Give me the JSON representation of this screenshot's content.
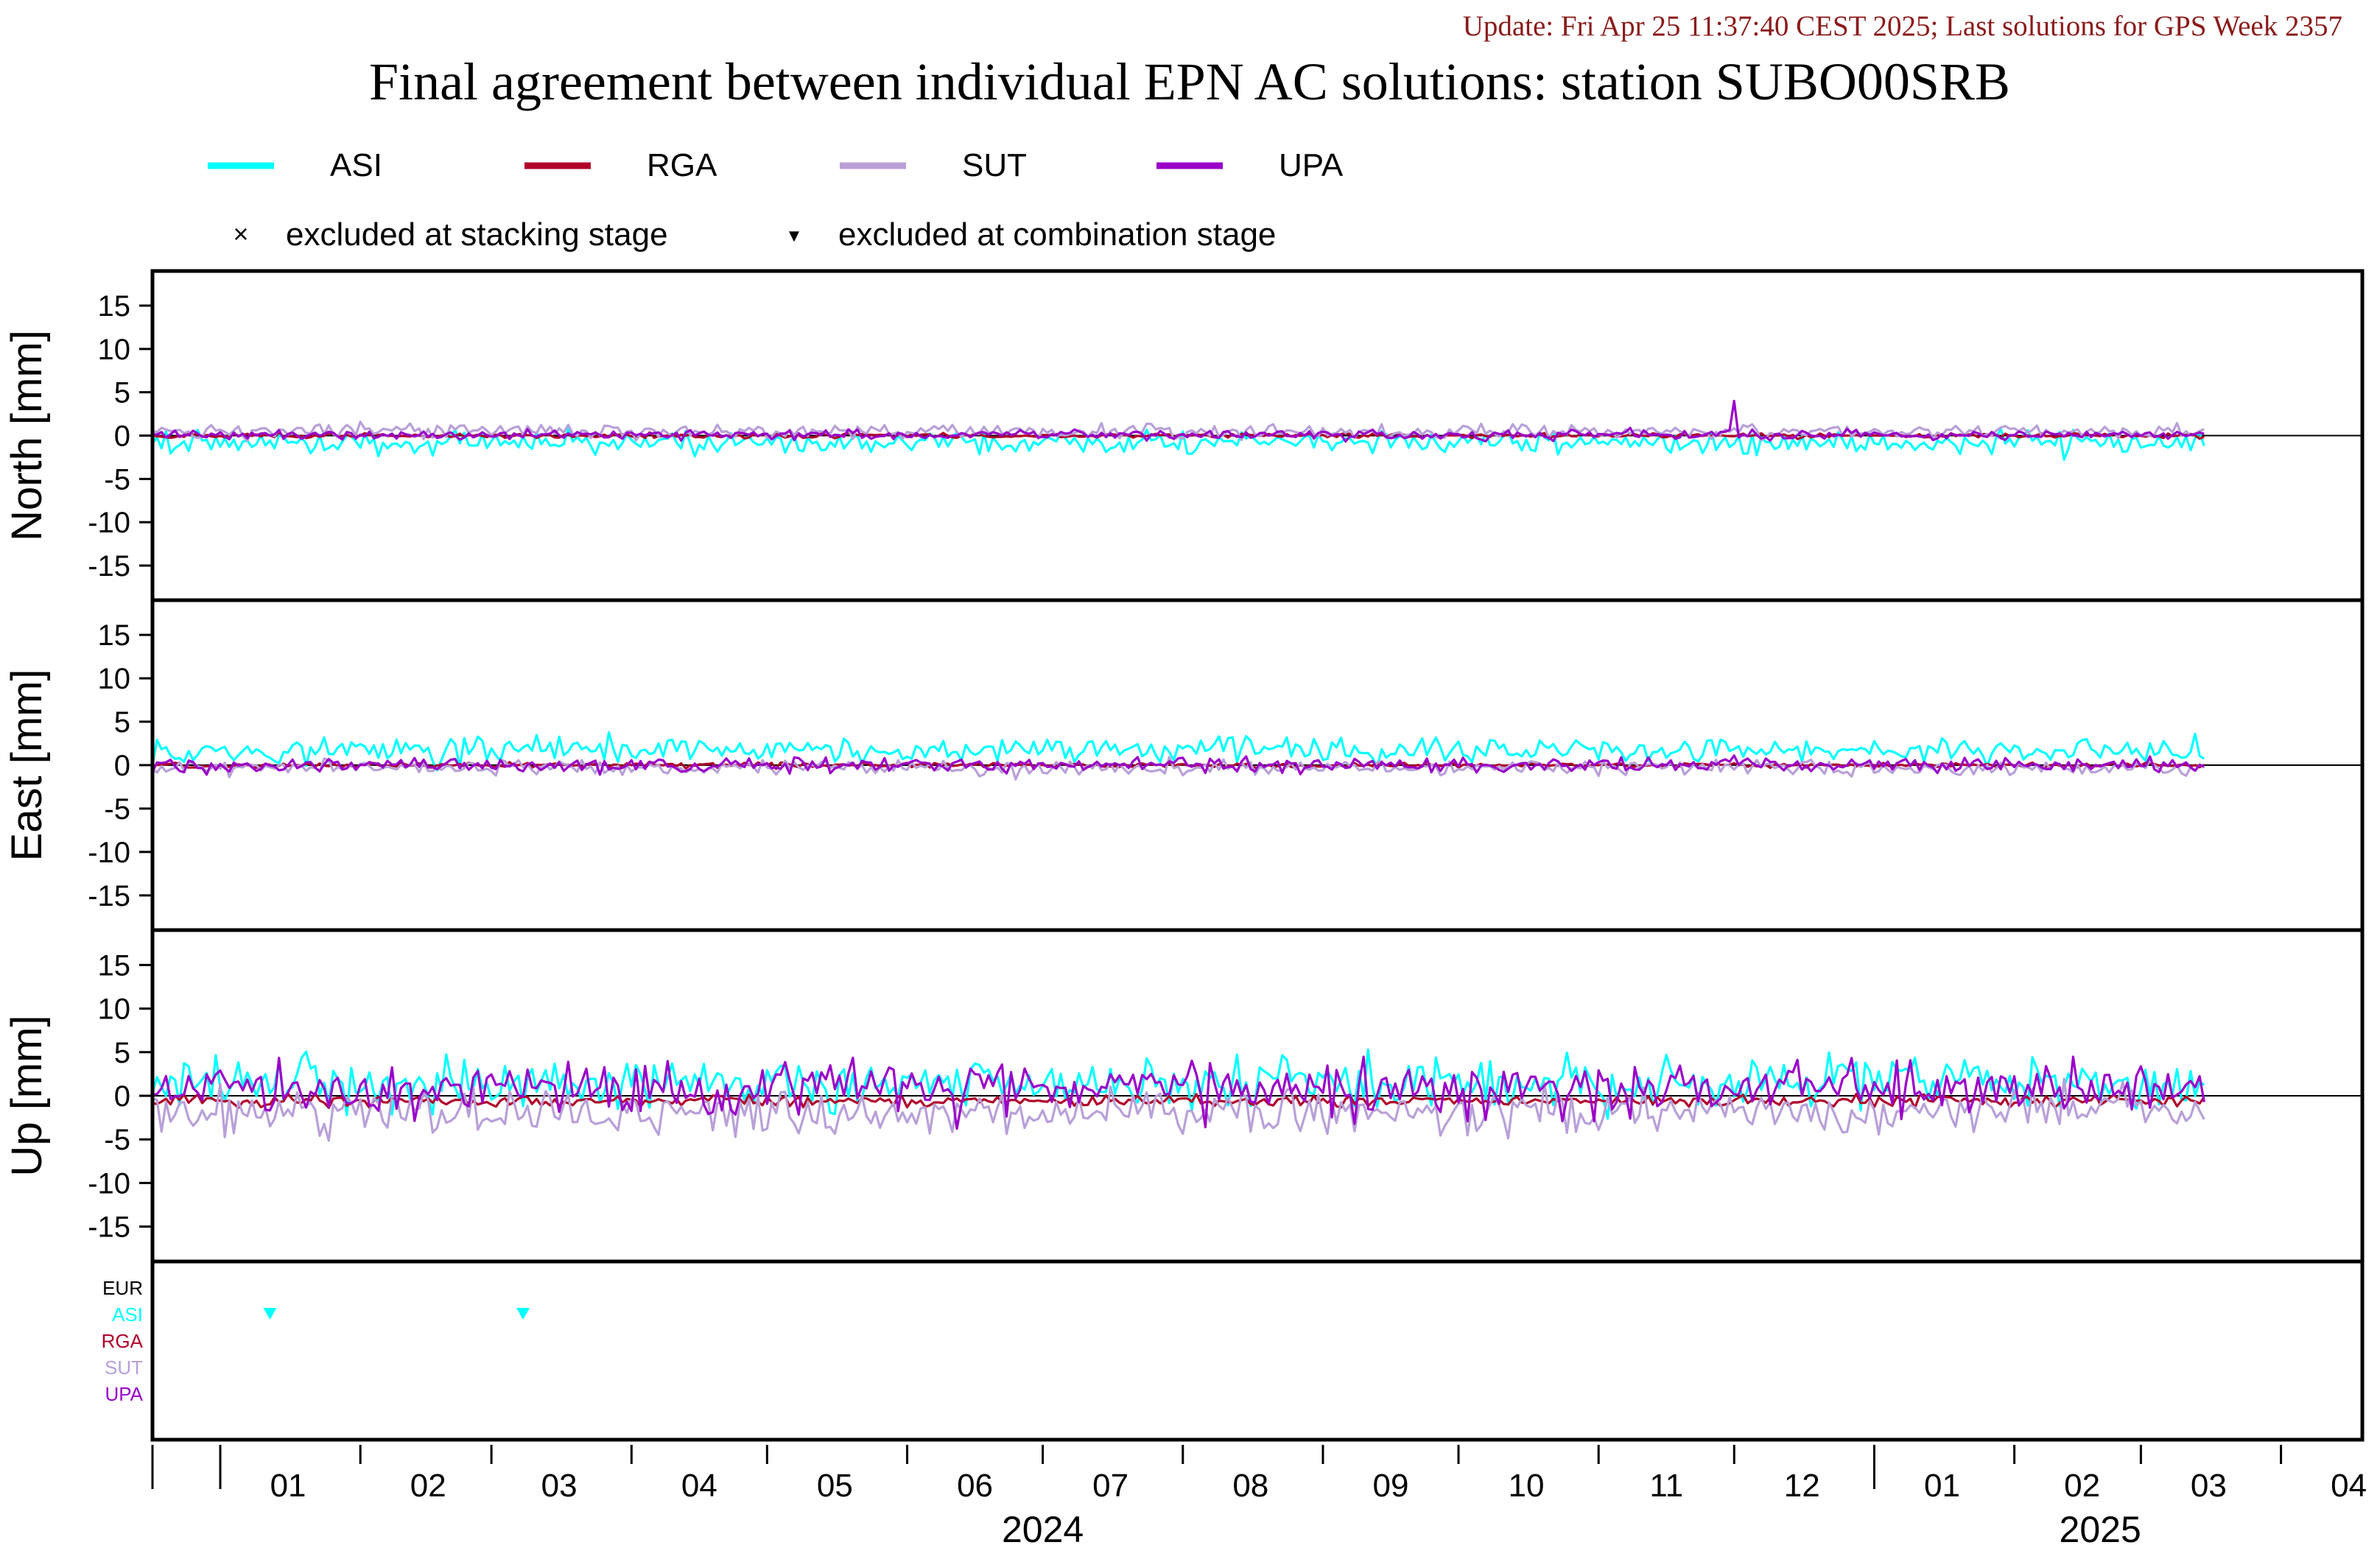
{
  "update_text": "Update: Fri Apr 25 11:37:40 CEST 2025; Last solutions for GPS Week 2357",
  "title": "Final agreement between individual EPN AC solutions: station SUBO00SRB",
  "legend": {
    "series": [
      {
        "name": "ASI",
        "color": "#00ffff"
      },
      {
        "name": "RGA",
        "color": "#b0002a"
      },
      {
        "name": "SUT",
        "color": "#b8a0d8"
      },
      {
        "name": "UPA",
        "color": "#9a00c8"
      }
    ],
    "markers": [
      {
        "symbol": "×",
        "label": "excluded at stacking stage"
      },
      {
        "symbol": "▼",
        "label": "excluded at combination stage"
      }
    ]
  },
  "chart_data": {
    "type": "line",
    "title": "Final agreement between individual EPN AC solutions: station SUBO00SRB",
    "x_range": [
      "2023-12-17",
      "2025-04-19"
    ],
    "x_extent_data": [
      "2023-12-17",
      "2025-03-15"
    ],
    "month_ticks": [
      "01",
      "02",
      "03",
      "04",
      "05",
      "06",
      "07",
      "08",
      "09",
      "10",
      "11",
      "12",
      "01",
      "02",
      "03",
      "04"
    ],
    "year_labels": [
      "2024",
      "2025"
    ],
    "panels": [
      {
        "ylabel": "North [mm]",
        "ylim": [
          -19,
          19
        ],
        "yticks": [
          -15,
          -10,
          -5,
          0,
          5,
          10,
          15
        ],
        "series": [
          {
            "name": "ASI",
            "color": "#00ffff",
            "mean": -0.8,
            "noise": 0.9,
            "spikes": []
          },
          {
            "name": "RGA",
            "color": "#b0002a",
            "mean": 0.0,
            "noise": 0.2,
            "spikes": []
          },
          {
            "name": "SUT",
            "color": "#b8a0d8",
            "mean": 0.5,
            "noise": 0.6,
            "spikes": []
          },
          {
            "name": "UPA",
            "color": "#9a00c8",
            "mean": 0.1,
            "noise": 0.4,
            "spikes": [
              {
                "date": "2024-12-01",
                "value": 4.0
              }
            ]
          }
        ]
      },
      {
        "ylabel": "East [mm]",
        "ylim": [
          -19,
          19
        ],
        "yticks": [
          -15,
          -10,
          -5,
          0,
          5,
          10,
          15
        ],
        "series": [
          {
            "name": "ASI",
            "color": "#00ffff",
            "mean": 1.7,
            "noise": 1.1,
            "spikes": []
          },
          {
            "name": "RGA",
            "color": "#b0002a",
            "mean": 0.0,
            "noise": 0.2,
            "spikes": []
          },
          {
            "name": "SUT",
            "color": "#b8a0d8",
            "mean": -0.3,
            "noise": 0.6,
            "spikes": []
          },
          {
            "name": "UPA",
            "color": "#9a00c8",
            "mean": 0.0,
            "noise": 0.6,
            "spikes": []
          }
        ]
      },
      {
        "ylabel": "Up [mm]",
        "ylim": [
          -19,
          19
        ],
        "yticks": [
          -15,
          -10,
          -5,
          0,
          5,
          10,
          15
        ],
        "series": [
          {
            "name": "ASI",
            "color": "#00ffff",
            "mean": 1.5,
            "noise": 2.0,
            "spikes": []
          },
          {
            "name": "RGA",
            "color": "#b0002a",
            "mean": -0.6,
            "noise": 0.5,
            "spikes": []
          },
          {
            "name": "SUT",
            "color": "#b8a0d8",
            "mean": -1.8,
            "noise": 1.8,
            "spikes": []
          },
          {
            "name": "UPA",
            "color": "#9a00c8",
            "mean": 0.8,
            "noise": 2.2,
            "spikes": []
          }
        ]
      }
    ],
    "exclusion_panel": {
      "rows": [
        "EUR",
        "ASI",
        "RGA",
        "SUT",
        "UPA"
      ],
      "row_colors": [
        "#000000",
        "#00ffff",
        "#b0002a",
        "#b8a0d8",
        "#9a00c8"
      ],
      "combination_exclusions": [
        {
          "row": "ASI",
          "date": "2024-01-12"
        },
        {
          "row": "ASI",
          "date": "2024-03-08"
        }
      ]
    },
    "grid": false,
    "legend_position": "top"
  }
}
